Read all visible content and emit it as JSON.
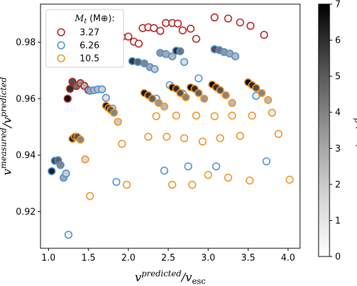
{
  "chart_data": {
    "type": "scatter",
    "xlabel": "v^predicted / v_esc",
    "ylabel": "v^measured / v^predicted",
    "xlim": [
      0.9,
      4.15
    ],
    "ylim": [
      0.907,
      0.9935
    ],
    "xticks": [
      "1.0",
      "1.5",
      "2.0",
      "2.5",
      "3.0",
      "3.5",
      "4.0"
    ],
    "yticks": [
      "0.92",
      "0.94",
      "0.96",
      "0.98"
    ],
    "grid": false,
    "legend": {
      "title": "M_t (M⊕):",
      "placement": "top-left",
      "entries": [
        "3.27",
        "6.26",
        "10.5"
      ]
    },
    "colorbar": {
      "label": "M_p (M⊕)",
      "range": [
        0,
        7
      ],
      "ticks": [
        "0",
        "1",
        "2",
        "3",
        "4",
        "5",
        "6",
        "7"
      ],
      "colormap": "Greys"
    },
    "series": [
      {
        "name": "3.27",
        "color": "#b22222",
        "points": [
          {
            "x": 1.24,
            "y": 0.96,
            "c": 6.8
          },
          {
            "x": 1.27,
            "y": 0.9635,
            "c": 6.0
          },
          {
            "x": 1.3,
            "y": 0.966,
            "c": 5.0
          },
          {
            "x": 1.35,
            "y": 0.9645,
            "c": 4.0
          },
          {
            "x": 1.4,
            "y": 0.9655,
            "c": 3.0
          },
          {
            "x": 1.45,
            "y": 0.9645,
            "c": 2.0
          },
          {
            "x": 1.5,
            "y": 0.963,
            "c": 1.0
          },
          {
            "x": 1.49,
            "y": 0.9755,
            "c": 1.4
          },
          {
            "x": 1.55,
            "y": 0.9752,
            "c": 1.2
          },
          {
            "x": 1.62,
            "y": 0.9752,
            "c": 1.0
          },
          {
            "x": 1.7,
            "y": 0.9745,
            "c": 0.8
          },
          {
            "x": 1.77,
            "y": 0.9735,
            "c": 0.6
          },
          {
            "x": 1.78,
            "y": 0.979,
            "c": 0.4
          },
          {
            "x": 1.85,
            "y": 0.9812,
            "c": 0.3
          },
          {
            "x": 1.92,
            "y": 0.9818,
            "c": 0.2
          },
          {
            "x": 2.0,
            "y": 0.982,
            "c": 0.2
          },
          {
            "x": 2.07,
            "y": 0.9802,
            "c": 0.1
          },
          {
            "x": 2.13,
            "y": 0.9795,
            "c": 0.1
          },
          {
            "x": 2.18,
            "y": 0.985,
            "c": 0.2
          },
          {
            "x": 2.25,
            "y": 0.9853,
            "c": 0.2
          },
          {
            "x": 2.32,
            "y": 0.985,
            "c": 0.1
          },
          {
            "x": 2.4,
            "y": 0.984,
            "c": 0.1
          },
          {
            "x": 2.47,
            "y": 0.9868,
            "c": 0.3
          },
          {
            "x": 2.55,
            "y": 0.9868,
            "c": 0.2
          },
          {
            "x": 2.62,
            "y": 0.9866,
            "c": 0.1
          },
          {
            "x": 2.68,
            "y": 0.9842,
            "c": 0.0
          },
          {
            "x": 2.78,
            "y": 0.9848,
            "c": 0.0
          },
          {
            "x": 2.85,
            "y": 0.9812,
            "c": 0.0
          },
          {
            "x": 3.08,
            "y": 0.9888,
            "c": 0.2
          },
          {
            "x": 3.25,
            "y": 0.9884,
            "c": 0.1
          },
          {
            "x": 3.4,
            "y": 0.987,
            "c": 0.0
          },
          {
            "x": 3.53,
            "y": 0.9858,
            "c": 0.0
          },
          {
            "x": 3.7,
            "y": 0.9826,
            "c": 0.0
          }
        ]
      },
      {
        "name": "6.26",
        "color": "#4a90d9",
        "points": [
          {
            "x": 1.04,
            "y": 0.9343,
            "c": 6.4
          },
          {
            "x": 1.08,
            "y": 0.938,
            "c": 5.5
          },
          {
            "x": 1.12,
            "y": 0.9382,
            "c": 4.5
          },
          {
            "x": 1.15,
            "y": 0.9365,
            "c": 3.5
          },
          {
            "x": 1.19,
            "y": 0.932,
            "c": 2.5
          },
          {
            "x": 1.22,
            "y": 0.9335,
            "c": 1.5
          },
          {
            "x": 1.25,
            "y": 0.9118,
            "c": 0.3
          },
          {
            "x": 1.52,
            "y": 0.9628,
            "c": 2.6
          },
          {
            "x": 1.57,
            "y": 0.963,
            "c": 2.2
          },
          {
            "x": 1.62,
            "y": 0.9633,
            "c": 1.8
          },
          {
            "x": 1.67,
            "y": 0.9633,
            "c": 1.3
          },
          {
            "x": 1.72,
            "y": 0.9603,
            "c": 0.8
          },
          {
            "x": 1.8,
            "y": 0.9565,
            "c": 0.4
          },
          {
            "x": 1.85,
            "y": 0.9305,
            "c": 0.1
          },
          {
            "x": 2.05,
            "y": 0.9733,
            "c": 5.8
          },
          {
            "x": 2.12,
            "y": 0.973,
            "c": 4.5
          },
          {
            "x": 2.2,
            "y": 0.9725,
            "c": 3.5
          },
          {
            "x": 2.27,
            "y": 0.9712,
            "c": 2.5
          },
          {
            "x": 2.33,
            "y": 0.9705,
            "c": 1.5
          },
          {
            "x": 2.4,
            "y": 0.9762,
            "c": 3.0
          },
          {
            "x": 2.47,
            "y": 0.9758,
            "c": 2.5
          },
          {
            "x": 2.55,
            "y": 0.975,
            "c": 2.0
          },
          {
            "x": 2.6,
            "y": 0.977,
            "c": 6.0
          },
          {
            "x": 2.65,
            "y": 0.9768,
            "c": 4.0
          },
          {
            "x": 2.7,
            "y": 0.973,
            "c": 1.0
          },
          {
            "x": 2.35,
            "y": 0.96,
            "c": 0.0
          },
          {
            "x": 2.52,
            "y": 0.9648,
            "c": 0.0
          },
          {
            "x": 2.68,
            "y": 0.9618,
            "c": 0.0
          },
          {
            "x": 2.88,
            "y": 0.9672,
            "c": 0.0
          },
          {
            "x": 2.45,
            "y": 0.9345,
            "c": 0.0
          },
          {
            "x": 2.75,
            "y": 0.936,
            "c": 0.0
          },
          {
            "x": 3.08,
            "y": 0.9775,
            "c": 5.0
          },
          {
            "x": 3.14,
            "y": 0.9772,
            "c": 4.0
          },
          {
            "x": 3.2,
            "y": 0.9765,
            "c": 3.0
          },
          {
            "x": 3.27,
            "y": 0.976,
            "c": 2.5
          },
          {
            "x": 3.34,
            "y": 0.975,
            "c": 2.0
          },
          {
            "x": 3.1,
            "y": 0.936,
            "c": 0.0
          },
          {
            "x": 3.6,
            "y": 0.961,
            "c": 0.5
          },
          {
            "x": 3.73,
            "y": 0.9378,
            "c": 0.0
          }
        ]
      },
      {
        "name": "10.5",
        "color": "#f0921e",
        "points": [
          {
            "x": 1.3,
            "y": 0.9458,
            "c": 6.8
          },
          {
            "x": 1.33,
            "y": 0.9465,
            "c": 6.0
          },
          {
            "x": 1.36,
            "y": 0.9465,
            "c": 5.0
          },
          {
            "x": 1.4,
            "y": 0.9455,
            "c": 3.5
          },
          {
            "x": 1.46,
            "y": 0.9385,
            "c": 1.0
          },
          {
            "x": 1.52,
            "y": 0.9255,
            "c": 0.0
          },
          {
            "x": 1.72,
            "y": 0.9575,
            "c": 6.8
          },
          {
            "x": 1.75,
            "y": 0.9567,
            "c": 6.0
          },
          {
            "x": 1.78,
            "y": 0.956,
            "c": 5.0
          },
          {
            "x": 1.82,
            "y": 0.955,
            "c": 3.5
          },
          {
            "x": 1.87,
            "y": 0.9518,
            "c": 1.5
          },
          {
            "x": 1.92,
            "y": 0.944,
            "c": 0.0
          },
          {
            "x": 1.98,
            "y": 0.9295,
            "c": 0.0
          },
          {
            "x": 2.2,
            "y": 0.962,
            "c": 6.8
          },
          {
            "x": 2.25,
            "y": 0.9612,
            "c": 6.0
          },
          {
            "x": 2.3,
            "y": 0.96,
            "c": 4.5
          },
          {
            "x": 2.38,
            "y": 0.9585,
            "c": 3.0
          },
          {
            "x": 2.45,
            "y": 0.9572,
            "c": 2.0
          },
          {
            "x": 2.55,
            "y": 0.964,
            "c": 7.0
          },
          {
            "x": 2.6,
            "y": 0.9635,
            "c": 6.0
          },
          {
            "x": 2.65,
            "y": 0.962,
            "c": 5.0
          },
          {
            "x": 2.72,
            "y": 0.9605,
            "c": 3.5
          },
          {
            "x": 2.78,
            "y": 0.964,
            "c": 7.0
          },
          {
            "x": 2.83,
            "y": 0.9635,
            "c": 6.0
          },
          {
            "x": 2.88,
            "y": 0.962,
            "c": 4.5
          },
          {
            "x": 2.95,
            "y": 0.96,
            "c": 3.0
          },
          {
            "x": 3.05,
            "y": 0.965,
            "c": 7.0
          },
          {
            "x": 3.1,
            "y": 0.964,
            "c": 6.0
          },
          {
            "x": 3.15,
            "y": 0.963,
            "c": 5.0
          },
          {
            "x": 3.22,
            "y": 0.9612,
            "c": 3.5
          },
          {
            "x": 3.3,
            "y": 0.9585,
            "c": 2.0
          },
          {
            "x": 3.5,
            "y": 0.9658,
            "c": 7.0
          },
          {
            "x": 3.55,
            "y": 0.9648,
            "c": 6.0
          },
          {
            "x": 3.6,
            "y": 0.9638,
            "c": 5.0
          },
          {
            "x": 3.67,
            "y": 0.962,
            "c": 3.5
          },
          {
            "x": 3.75,
            "y": 0.9595,
            "c": 2.0
          },
          {
            "x": 3.8,
            "y": 0.955,
            "c": 0.5
          },
          {
            "x": 2.35,
            "y": 0.9538,
            "c": 0.0
          },
          {
            "x": 2.6,
            "y": 0.954,
            "c": 0.0
          },
          {
            "x": 2.85,
            "y": 0.954,
            "c": 0.0
          },
          {
            "x": 3.08,
            "y": 0.9538,
            "c": 0.0
          },
          {
            "x": 3.3,
            "y": 0.954,
            "c": 0.0
          },
          {
            "x": 3.55,
            "y": 0.954,
            "c": 0.0
          },
          {
            "x": 2.25,
            "y": 0.9465,
            "c": 0.0
          },
          {
            "x": 2.48,
            "y": 0.9465,
            "c": 0.0
          },
          {
            "x": 2.7,
            "y": 0.946,
            "c": 0.0
          },
          {
            "x": 2.93,
            "y": 0.9448,
            "c": 0.0
          },
          {
            "x": 3.15,
            "y": 0.946,
            "c": 0.0
          },
          {
            "x": 3.4,
            "y": 0.9468,
            "c": 0.0
          },
          {
            "x": 3.88,
            "y": 0.9475,
            "c": 0.0
          },
          {
            "x": 2.55,
            "y": 0.9295,
            "c": 0.0
          },
          {
            "x": 2.8,
            "y": 0.9295,
            "c": 0.0
          },
          {
            "x": 3.0,
            "y": 0.933,
            "c": 0.0
          },
          {
            "x": 3.25,
            "y": 0.932,
            "c": 0.0
          },
          {
            "x": 3.52,
            "y": 0.931,
            "c": 0.0
          },
          {
            "x": 4.02,
            "y": 0.9313,
            "c": 0.0
          }
        ]
      }
    ]
  }
}
